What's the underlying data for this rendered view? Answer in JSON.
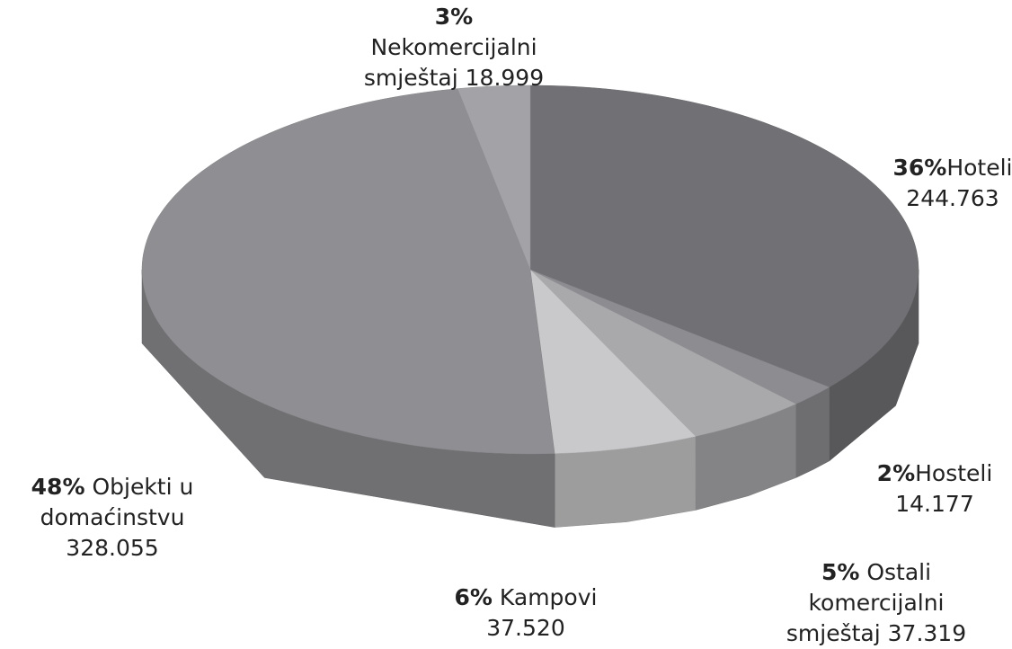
{
  "chart_data": {
    "type": "pie",
    "style": "3d",
    "categories": [
      "Hoteli",
      "Hosteli",
      "Ostali komercijalni smještaj",
      "Kampovi",
      "Objekti u domaćinstvu",
      "Nekomercijalni smještaj"
    ],
    "values": [
      36,
      2,
      5,
      6,
      48,
      3
    ],
    "value_labels": [
      "36%",
      "2%",
      "5%",
      "6%",
      "48%",
      "3%"
    ],
    "counts": [
      244763,
      14177,
      37319,
      37520,
      328055,
      18999
    ],
    "count_labels": [
      "244.763",
      "14.177",
      "37.319",
      "37.520",
      "328.055",
      "18.999"
    ],
    "colors": [
      "#717175",
      "#8d8d91",
      "#a9a9ac",
      "#c9c9cb",
      "#8f8f93",
      "#a3a3a7"
    ]
  }
}
